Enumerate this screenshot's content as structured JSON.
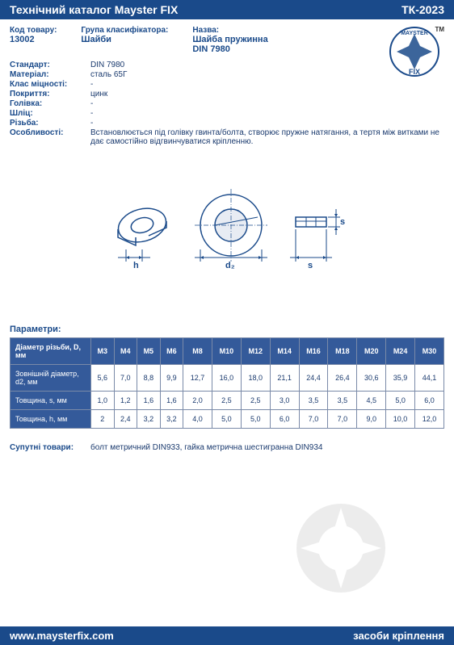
{
  "header": {
    "title": "Технічний каталог Mayster FIX",
    "code": "ТК-2023"
  },
  "info": {
    "code_label": "Код товару:",
    "code_value": "13002",
    "group_label": "Група класифікатора:",
    "group_value": "Шайби",
    "name_label": "Назва:",
    "name_line1": "Шайба пружинна",
    "name_line2": "DIN 7980",
    "rows": [
      {
        "label": "Стандарт:",
        "value": "DIN 7980"
      },
      {
        "label": "Матеріал:",
        "value": "сталь 65Г"
      },
      {
        "label": "Клас міцності:",
        "value": "-"
      },
      {
        "label": "Покриття:",
        "value": "цинк"
      },
      {
        "label": "Голівка:",
        "value": "-"
      },
      {
        "label": "Шліц:",
        "value": "-"
      },
      {
        "label": "Різьба:",
        "value": "-"
      },
      {
        "label": "Особливості:",
        "value": "Встановлюється під голівку гвинта/болта, створює пружне натягання, а тертя між витками не дає самостійно відгвинчуватися кріпленню."
      }
    ]
  },
  "params_title": "Параметри:",
  "table": {
    "header_label": "Діаметр різьби, D, мм",
    "columns": [
      "М3",
      "М4",
      "М5",
      "М6",
      "М8",
      "М10",
      "М12",
      "М14",
      "М16",
      "М18",
      "М20",
      "М24",
      "М30"
    ],
    "rows": [
      {
        "label": "Зовнішній діаметр, d2, мм",
        "values": [
          "5,6",
          "7,0",
          "8,8",
          "9,9",
          "12,7",
          "16,0",
          "18,0",
          "21,1",
          "24,4",
          "26,4",
          "30,6",
          "35,9",
          "44,1"
        ]
      },
      {
        "label": "Товщина, s,  мм",
        "values": [
          "1,0",
          "1,2",
          "1,6",
          "1,6",
          "2,0",
          "2,5",
          "2,5",
          "3,0",
          "3,5",
          "3,5",
          "4,5",
          "5,0",
          "6,0"
        ]
      },
      {
        "label": "Товщина, h, мм",
        "values": [
          "2",
          "2,4",
          "3,2",
          "3,2",
          "4,0",
          "5,0",
          "5,0",
          "6,0",
          "7,0",
          "7,0",
          "9,0",
          "10,0",
          "12,0"
        ]
      }
    ]
  },
  "related": {
    "label": "Супутні товари:",
    "value": "болт метричний DIN933, гайка метрична шестигранна DIN934"
  },
  "footer": {
    "url": "www.maysterfix.com",
    "tagline": "засоби кріплення"
  },
  "logo": {
    "text_top": "MAYSTER",
    "text_bottom": "FIX",
    "tm": "TM"
  },
  "diagram_labels": {
    "h": "h",
    "d2": "d₂",
    "s": "s"
  },
  "colors": {
    "primary": "#1a4a8a",
    "table_header": "#345a9a",
    "text": "#1a3a6e",
    "border": "#7a8aa8"
  }
}
